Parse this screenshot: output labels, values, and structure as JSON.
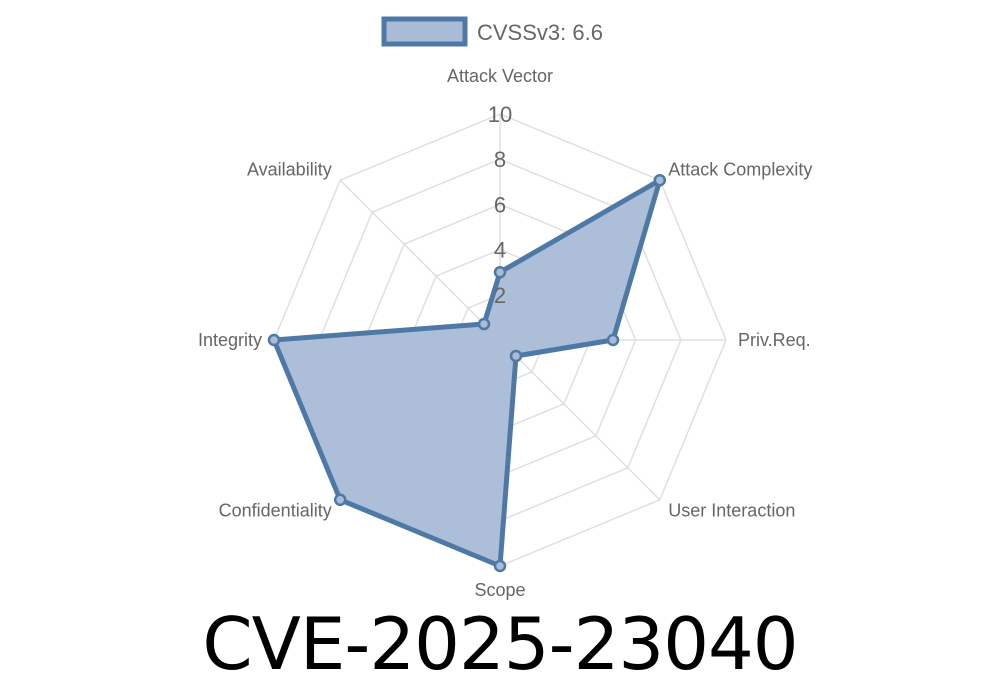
{
  "page_title": "CVE-2025-23040",
  "chart_data": {
    "type": "radar",
    "categories": [
      "Attack Vector",
      "Attack Complexity",
      "Priv.Req.",
      "User Interaction",
      "Scope",
      "Confidentiality",
      "Integrity",
      "Availability"
    ],
    "series": [
      {
        "name": "CVSSv3: 6.6",
        "values": [
          3,
          10,
          5,
          1,
          10,
          10,
          10,
          1
        ]
      }
    ],
    "rlim": [
      0,
      10
    ],
    "ticks": [
      "2",
      "4",
      "6",
      "8",
      "10"
    ],
    "grid": true,
    "legend": "top",
    "colors": {
      "stroke": "#4e79a7",
      "fill": "#a9bbd6",
      "grid": "#e0e0e0"
    }
  }
}
